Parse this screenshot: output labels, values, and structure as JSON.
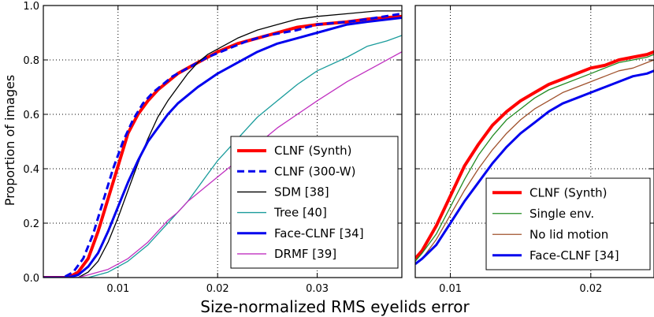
{
  "figure": {
    "ylabel": "Proportion of images",
    "xlabel": "Size-normalized RMS eyelids error"
  },
  "chart_data": [
    {
      "type": "line",
      "xlim": [
        0.0025,
        0.0385
      ],
      "ylim": [
        0,
        1.0
      ],
      "xticks": [
        0.01,
        0.02,
        0.03
      ],
      "xtick_labels": [
        "0.01",
        "0.02",
        "0.03"
      ],
      "yticks": [
        0.0,
        0.2,
        0.4,
        0.6,
        0.8,
        1.0
      ],
      "ytick_labels": [
        "0.0",
        "0.2",
        "0.4",
        "0.6",
        "0.8",
        "1.0"
      ],
      "grid": true,
      "legend_position": "bottom-right",
      "series": [
        {
          "name": "CLNF (Synth)",
          "color": "#ff0000",
          "dash": "solid",
          "width": 4,
          "x": [
            0.0025,
            0.005,
            0.006,
            0.007,
            0.008,
            0.009,
            0.01,
            0.011,
            0.012,
            0.013,
            0.014,
            0.015,
            0.016,
            0.018,
            0.02,
            0.022,
            0.025,
            0.028,
            0.03,
            0.033,
            0.035,
            0.0385
          ],
          "y": [
            0.0,
            0.0,
            0.02,
            0.07,
            0.17,
            0.29,
            0.41,
            0.53,
            0.6,
            0.65,
            0.69,
            0.72,
            0.75,
            0.79,
            0.83,
            0.86,
            0.89,
            0.92,
            0.93,
            0.94,
            0.95,
            0.96
          ]
        },
        {
          "name": "CLNF (300-W)",
          "color": "#0000ee",
          "dash": "dashed",
          "width": 3,
          "x": [
            0.0025,
            0.0045,
            0.0055,
            0.0065,
            0.0075,
            0.0085,
            0.0095,
            0.0105,
            0.0115,
            0.0125,
            0.0135,
            0.0145,
            0.0155,
            0.017,
            0.019,
            0.021,
            0.023,
            0.025,
            0.028,
            0.03,
            0.033,
            0.035,
            0.0385
          ],
          "y": [
            0.0,
            0.0,
            0.02,
            0.07,
            0.16,
            0.28,
            0.4,
            0.5,
            0.58,
            0.64,
            0.68,
            0.71,
            0.74,
            0.77,
            0.81,
            0.84,
            0.87,
            0.89,
            0.91,
            0.93,
            0.94,
            0.95,
            0.97
          ]
        },
        {
          "name": "SDM [38]",
          "color": "#000000",
          "dash": "solid",
          "width": 1.3,
          "x": [
            0.0025,
            0.006,
            0.007,
            0.008,
            0.009,
            0.01,
            0.011,
            0.012,
            0.013,
            0.014,
            0.015,
            0.016,
            0.017,
            0.018,
            0.019,
            0.02,
            0.022,
            0.024,
            0.026,
            0.028,
            0.03,
            0.033,
            0.036,
            0.0385
          ],
          "y": [
            0.0,
            0.0,
            0.02,
            0.06,
            0.13,
            0.22,
            0.32,
            0.42,
            0.51,
            0.59,
            0.65,
            0.7,
            0.75,
            0.79,
            0.82,
            0.84,
            0.88,
            0.91,
            0.93,
            0.95,
            0.96,
            0.97,
            0.98,
            0.98
          ]
        },
        {
          "name": "Tree [40]",
          "color": "#1a9c9c",
          "dash": "solid",
          "width": 1.3,
          "x": [
            0.0025,
            0.007,
            0.008,
            0.009,
            0.01,
            0.011,
            0.012,
            0.013,
            0.014,
            0.015,
            0.016,
            0.017,
            0.018,
            0.019,
            0.02,
            0.021,
            0.022,
            0.023,
            0.024,
            0.026,
            0.028,
            0.03,
            0.033,
            0.035,
            0.037,
            0.0385
          ],
          "y": [
            0.0,
            0.0,
            0.01,
            0.02,
            0.04,
            0.06,
            0.09,
            0.12,
            0.16,
            0.2,
            0.24,
            0.28,
            0.33,
            0.38,
            0.43,
            0.47,
            0.51,
            0.55,
            0.59,
            0.65,
            0.71,
            0.76,
            0.81,
            0.85,
            0.87,
            0.89
          ]
        },
        {
          "name": "Face-CLNF [34]",
          "color": "#0000ee",
          "dash": "solid",
          "width": 3,
          "x": [
            0.0025,
            0.005,
            0.006,
            0.007,
            0.008,
            0.009,
            0.01,
            0.011,
            0.012,
            0.013,
            0.014,
            0.015,
            0.016,
            0.017,
            0.018,
            0.02,
            0.022,
            0.024,
            0.026,
            0.028,
            0.03,
            0.033,
            0.035,
            0.0385
          ],
          "y": [
            0.0,
            0.0,
            0.01,
            0.04,
            0.09,
            0.17,
            0.26,
            0.35,
            0.43,
            0.5,
            0.55,
            0.6,
            0.64,
            0.67,
            0.7,
            0.75,
            0.79,
            0.83,
            0.86,
            0.88,
            0.9,
            0.93,
            0.94,
            0.955
          ]
        },
        {
          "name": "DRMF [39]",
          "color": "#c030c0",
          "dash": "solid",
          "width": 1.3,
          "x": [
            0.0025,
            0.006,
            0.007,
            0.008,
            0.009,
            0.01,
            0.011,
            0.012,
            0.013,
            0.014,
            0.015,
            0.016,
            0.017,
            0.018,
            0.019,
            0.02,
            0.022,
            0.024,
            0.026,
            0.028,
            0.03,
            0.033,
            0.036,
            0.0385
          ],
          "y": [
            0.0,
            0.0,
            0.01,
            0.02,
            0.03,
            0.05,
            0.07,
            0.1,
            0.13,
            0.17,
            0.21,
            0.24,
            0.28,
            0.31,
            0.34,
            0.37,
            0.43,
            0.49,
            0.55,
            0.6,
            0.65,
            0.72,
            0.78,
            0.83
          ]
        }
      ]
    },
    {
      "type": "line",
      "xlim": [
        0.0075,
        0.0245
      ],
      "ylim": [
        0,
        1.0
      ],
      "xticks": [
        0.01,
        0.02
      ],
      "xtick_labels": [
        "0.01",
        "0.02"
      ],
      "grid": true,
      "legend_position": "bottom-right",
      "series": [
        {
          "name": "CLNF (Synth)",
          "color": "#ff0000",
          "dash": "solid",
          "width": 4,
          "x": [
            0.0075,
            0.008,
            0.009,
            0.01,
            0.011,
            0.012,
            0.013,
            0.014,
            0.015,
            0.016,
            0.017,
            0.018,
            0.019,
            0.02,
            0.021,
            0.022,
            0.023,
            0.024,
            0.0245
          ],
          "y": [
            0.07,
            0.1,
            0.19,
            0.3,
            0.41,
            0.49,
            0.56,
            0.61,
            0.65,
            0.68,
            0.71,
            0.73,
            0.75,
            0.77,
            0.78,
            0.8,
            0.81,
            0.82,
            0.83
          ]
        },
        {
          "name": "Single env.",
          "color": "#228b22",
          "dash": "solid",
          "width": 1.3,
          "x": [
            0.0075,
            0.008,
            0.009,
            0.01,
            0.011,
            0.012,
            0.013,
            0.014,
            0.015,
            0.016,
            0.017,
            0.018,
            0.019,
            0.02,
            0.021,
            0.022,
            0.023,
            0.024,
            0.0245
          ],
          "y": [
            0.06,
            0.09,
            0.16,
            0.26,
            0.36,
            0.45,
            0.52,
            0.58,
            0.62,
            0.66,
            0.69,
            0.71,
            0.73,
            0.75,
            0.77,
            0.79,
            0.8,
            0.81,
            0.82
          ]
        },
        {
          "name": "No lid motion",
          "color": "#a0522d",
          "dash": "solid",
          "width": 1.3,
          "x": [
            0.0075,
            0.008,
            0.009,
            0.01,
            0.011,
            0.012,
            0.013,
            0.014,
            0.015,
            0.016,
            0.017,
            0.018,
            0.019,
            0.02,
            0.021,
            0.022,
            0.023,
            0.024,
            0.0245
          ],
          "y": [
            0.05,
            0.07,
            0.14,
            0.23,
            0.32,
            0.4,
            0.47,
            0.53,
            0.58,
            0.62,
            0.65,
            0.68,
            0.7,
            0.72,
            0.74,
            0.76,
            0.77,
            0.79,
            0.8
          ]
        },
        {
          "name": "Face-CLNF [34]",
          "color": "#0000ee",
          "dash": "solid",
          "width": 3,
          "x": [
            0.0075,
            0.008,
            0.009,
            0.01,
            0.011,
            0.012,
            0.013,
            0.014,
            0.015,
            0.016,
            0.017,
            0.018,
            0.019,
            0.02,
            0.021,
            0.022,
            0.023,
            0.024,
            0.0245
          ],
          "y": [
            0.05,
            0.07,
            0.12,
            0.2,
            0.28,
            0.35,
            0.42,
            0.48,
            0.53,
            0.57,
            0.61,
            0.64,
            0.66,
            0.68,
            0.7,
            0.72,
            0.74,
            0.75,
            0.76
          ]
        }
      ]
    }
  ]
}
